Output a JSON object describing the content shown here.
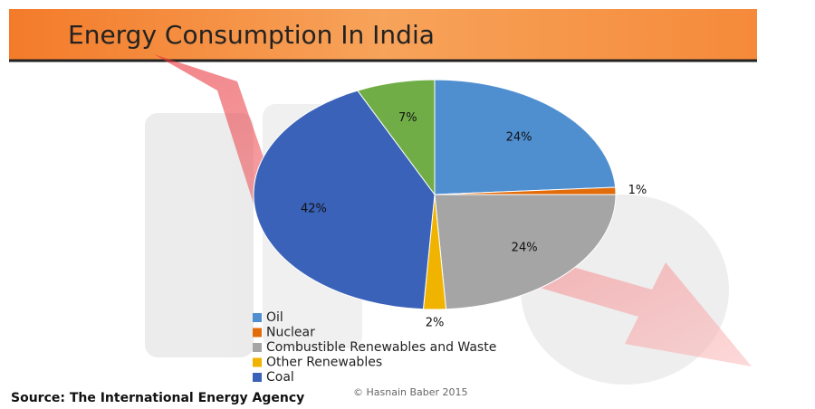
{
  "chart_data": {
    "type": "pie",
    "title": "Energy Consumption In India",
    "categories": [
      "Oil",
      "Nuclear",
      "Combustible Renewables and Waste",
      "Other Renewables",
      "Coal",
      null
    ],
    "values": [
      24,
      1,
      24,
      2,
      42,
      7
    ],
    "value_labels": [
      "24%",
      "1%",
      "24%",
      "2%",
      "42%",
      "7%"
    ],
    "colors": [
      "#4f8fd0",
      "#e36c0a",
      "#a5a5a5",
      "#f0b400",
      "#3a62b8",
      "#70ad47"
    ],
    "source": "Source: The International Energy Agency",
    "credit": "© Hasnain Baber 2015"
  }
}
